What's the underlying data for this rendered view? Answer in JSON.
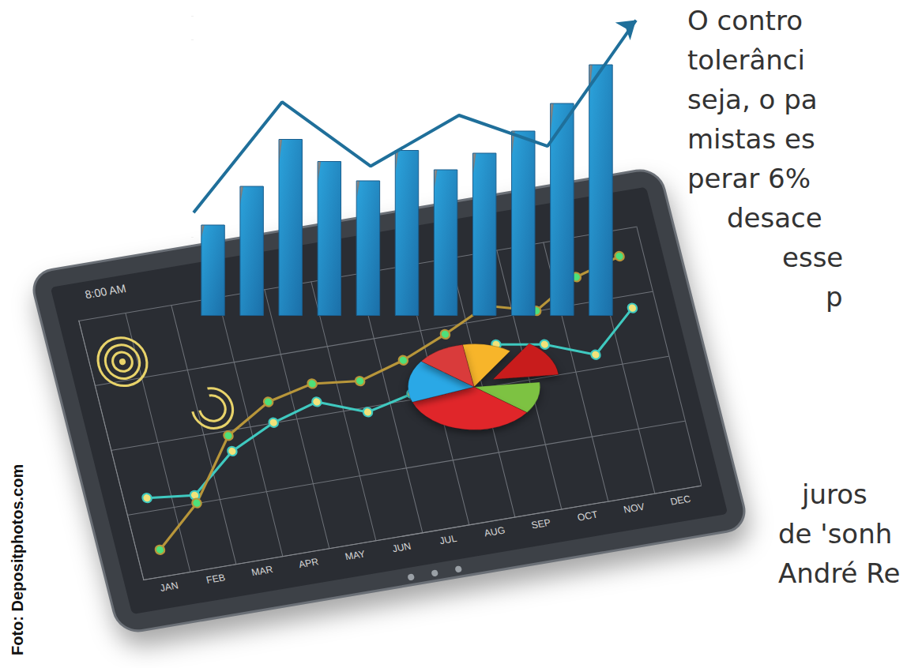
{
  "photo_credit": "Foto: Depositphotos.com",
  "article_text": [
    "O contro",
    "tolerânci",
    "seja, o pa",
    "mistas es",
    "perar 6%",
    "desace",
    "esse",
    "p",
    "juros",
    "de 'sonh",
    "André Re"
  ],
  "tablet": {
    "clock": "8:00 AM"
  },
  "chart_data": [
    {
      "type": "line",
      "categories": [
        "JAN",
        "FEB",
        "MAR",
        "APR",
        "MAY",
        "JUN",
        "JUL",
        "AUG",
        "SEP",
        "OCT",
        "NOV",
        "DEC"
      ],
      "series": [
        {
          "color": "#3fc9c0",
          "marker": "circle",
          "values": [
            30,
            28,
            42,
            50,
            55,
            48,
            52,
            60,
            65,
            62,
            55,
            70
          ]
        },
        {
          "color": "#b8963a",
          "marker": "circle",
          "values": [
            10,
            25,
            48,
            58,
            62,
            60,
            65,
            72,
            80,
            75,
            85,
            90
          ]
        }
      ],
      "ylim": [
        0,
        100
      ],
      "yticks": [
        0,
        25,
        50,
        75,
        100
      ],
      "grid": true,
      "tick_labels": "x"
    },
    {
      "type": "bar",
      "categories": [
        null,
        null,
        null,
        null,
        null,
        null,
        null,
        null,
        null,
        null,
        null
      ],
      "values": [
        33,
        47,
        64,
        56,
        49,
        60,
        53,
        59,
        67,
        77,
        91
      ],
      "color": "#2a9fd8",
      "ylim": [
        0,
        100
      ],
      "yticks": [
        0,
        100
      ],
      "tick_labels": false
    },
    {
      "type": "line",
      "categories": [
        null,
        null,
        null,
        null,
        null,
        null
      ],
      "values": [
        11,
        61,
        32,
        55,
        41,
        98
      ],
      "color": "#1f6f9a",
      "marker": "arrow",
      "ylim": [
        0,
        100
      ],
      "yticks": [
        0,
        100
      ],
      "tick_labels": false
    },
    {
      "type": "pie",
      "values": [
        12,
        14,
        12,
        34,
        16,
        12
      ],
      "colors": [
        "#f7b52c",
        "#c81e1e",
        "#7dc242",
        "#e0262b",
        "#2aa8e6",
        "#d93a3a"
      ]
    }
  ]
}
